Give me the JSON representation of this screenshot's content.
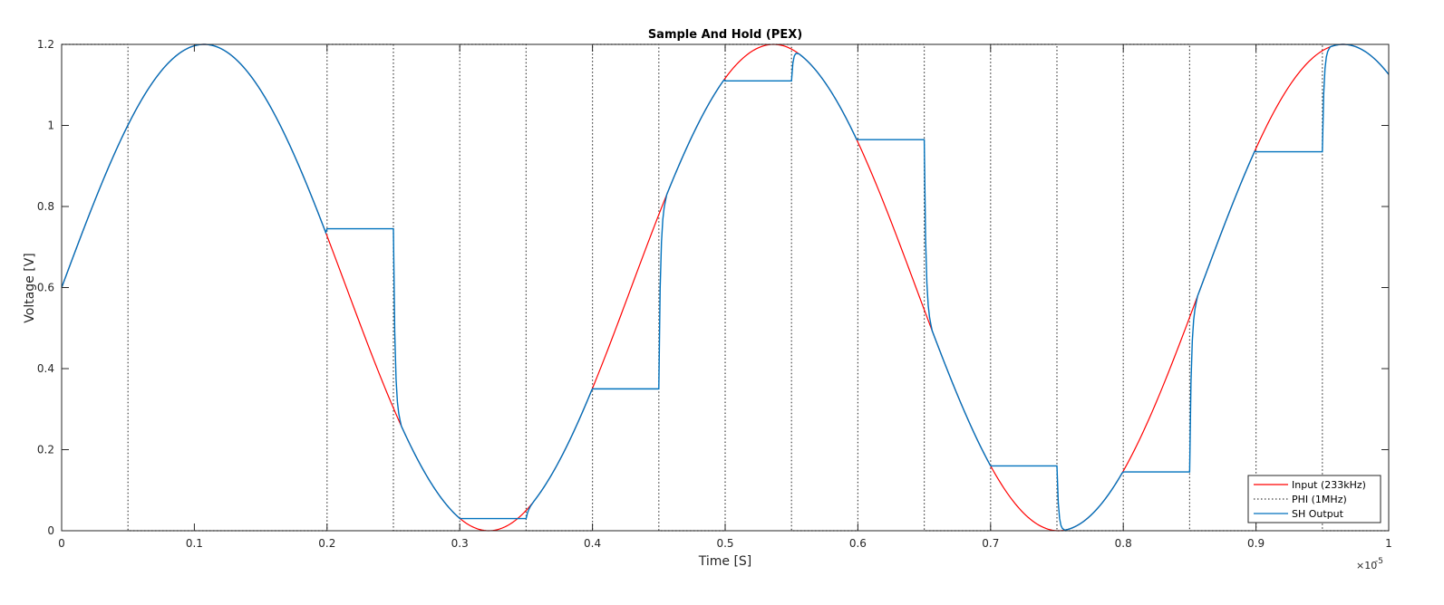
{
  "chart_data": {
    "type": "line",
    "title": "Sample And Hold (PEX)",
    "xlabel": "Time [S]",
    "ylabel": "Voltage [V]",
    "x_exponent_label": "×10",
    "x_exponent_power": "-5",
    "xlim": [
      0,
      1
    ],
    "ylim": [
      0,
      1.2
    ],
    "x_ticks": [
      "0",
      "0.1",
      "0.2",
      "0.3",
      "0.4",
      "0.5",
      "0.6",
      "0.7",
      "0.8",
      "0.9",
      "1"
    ],
    "y_ticks": [
      "0",
      "0.2",
      "0.4",
      "0.6",
      "0.8",
      "1",
      "1.2"
    ],
    "grid": false,
    "legend_position": "bottom-right",
    "series": [
      {
        "name": "Input (233kHz)",
        "color": "#ff0000",
        "style": "solid",
        "kind": "sine",
        "amplitude": 0.6,
        "offset": 0.6,
        "frequency_per_unit": 2.33,
        "x_start": 0,
        "x_end": 1
      },
      {
        "name": "PHI (1MHz)",
        "color": "#404040",
        "style": "dotted",
        "kind": "square",
        "low": 0,
        "high": 1.2,
        "rising_edges": [
          0,
          0.2,
          0.3,
          0.4,
          0.5,
          0.6,
          0.7,
          0.8,
          0.9
        ],
        "falling_edges": [
          0.05,
          0.25,
          0.35,
          0.45,
          0.55,
          0.65,
          0.75,
          0.85,
          0.95
        ]
      },
      {
        "name": "SH Output",
        "color": "#0072bd",
        "style": "solid",
        "kind": "sample-hold",
        "track_start": 0,
        "track_end": 0.2,
        "hold_values": [
          {
            "x0": 0.2,
            "x1": 0.25,
            "y": 0.745
          },
          {
            "x0": 0.3,
            "x1": 0.35,
            "y": 0.03
          },
          {
            "x0": 0.4,
            "x1": 0.45,
            "y": 0.35
          },
          {
            "x0": 0.5,
            "x1": 0.55,
            "y": 1.11
          },
          {
            "x0": 0.6,
            "x1": 0.65,
            "y": 0.965
          },
          {
            "x0": 0.7,
            "x1": 0.75,
            "y": 0.16
          },
          {
            "x0": 0.8,
            "x1": 0.85,
            "y": 0.145
          },
          {
            "x0": 0.9,
            "x1": 0.95,
            "y": 0.935
          }
        ]
      }
    ]
  }
}
